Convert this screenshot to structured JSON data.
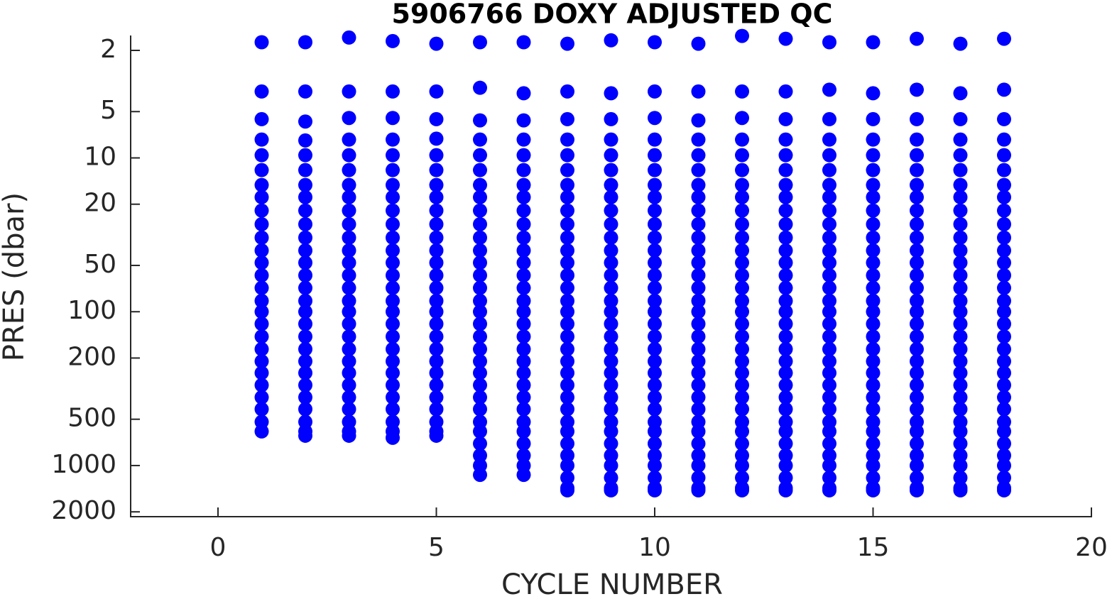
{
  "chart_data": {
    "type": "scatter",
    "title": "5906766  DOXY ADJUSTED QC",
    "x_label": "CYCLE NUMBER",
    "y_label": "PRES (dbar)",
    "color": "#0000ff",
    "y_log": true,
    "y_reversed": true,
    "xlim": [
      -2,
      20
    ],
    "xticks": [
      0,
      5,
      10,
      15,
      20
    ],
    "ylim": [
      1.6,
      2150
    ],
    "yticks": [
      2,
      5,
      10,
      20,
      50,
      100,
      200,
      500,
      1000,
      2000
    ],
    "x": [
      1,
      1,
      1,
      1,
      1,
      1,
      1,
      1,
      1,
      1,
      1,
      1,
      1,
      1,
      1,
      1,
      1,
      1,
      1,
      1,
      1,
      1,
      1,
      1,
      1,
      1,
      1,
      2,
      2,
      2,
      2,
      2,
      2,
      2,
      2,
      2,
      2,
      2,
      2,
      2,
      2,
      2,
      2,
      2,
      2,
      2,
      2,
      2,
      2,
      2,
      2,
      2,
      2,
      2,
      2,
      3,
      3,
      3,
      3,
      3,
      3,
      3,
      3,
      3,
      3,
      3,
      3,
      3,
      3,
      3,
      3,
      3,
      3,
      3,
      3,
      3,
      3,
      3,
      3,
      3,
      3,
      3,
      3,
      4,
      4,
      4,
      4,
      4,
      4,
      4,
      4,
      4,
      4,
      4,
      4,
      4,
      4,
      4,
      4,
      4,
      4,
      4,
      4,
      4,
      4,
      4,
      4,
      4,
      4,
      4,
      4,
      5,
      5,
      5,
      5,
      5,
      5,
      5,
      5,
      5,
      5,
      5,
      5,
      5,
      5,
      5,
      5,
      5,
      5,
      5,
      5,
      5,
      5,
      5,
      5,
      5,
      5,
      5,
      5,
      6,
      6,
      6,
      6,
      6,
      6,
      6,
      6,
      6,
      6,
      6,
      6,
      6,
      6,
      6,
      6,
      6,
      6,
      6,
      6,
      6,
      6,
      6,
      6,
      6,
      6,
      6,
      6,
      6,
      6,
      6,
      7,
      7,
      7,
      7,
      7,
      7,
      7,
      7,
      7,
      7,
      7,
      7,
      7,
      7,
      7,
      7,
      7,
      7,
      7,
      7,
      7,
      7,
      7,
      7,
      7,
      7,
      7,
      7,
      7,
      7,
      7,
      8,
      8,
      8,
      8,
      8,
      8,
      8,
      8,
      8,
      8,
      8,
      8,
      8,
      8,
      8,
      8,
      8,
      8,
      8,
      8,
      8,
      8,
      8,
      8,
      8,
      8,
      8,
      8,
      8,
      8,
      8,
      8,
      8,
      9,
      9,
      9,
      9,
      9,
      9,
      9,
      9,
      9,
      9,
      9,
      9,
      9,
      9,
      9,
      9,
      9,
      9,
      9,
      9,
      9,
      9,
      9,
      9,
      9,
      9,
      9,
      9,
      9,
      9,
      9,
      9,
      9,
      10,
      10,
      10,
      10,
      10,
      10,
      10,
      10,
      10,
      10,
      10,
      10,
      10,
      10,
      10,
      10,
      10,
      10,
      10,
      10,
      10,
      10,
      10,
      10,
      10,
      10,
      10,
      10,
      10,
      10,
      10,
      10,
      10,
      11,
      11,
      11,
      11,
      11,
      11,
      11,
      11,
      11,
      11,
      11,
      11,
      11,
      11,
      11,
      11,
      11,
      11,
      11,
      11,
      11,
      11,
      11,
      11,
      11,
      11,
      11,
      11,
      11,
      11,
      11,
      11,
      11,
      12,
      12,
      12,
      12,
      12,
      12,
      12,
      12,
      12,
      12,
      12,
      12,
      12,
      12,
      12,
      12,
      12,
      12,
      12,
      12,
      12,
      12,
      12,
      12,
      12,
      12,
      12,
      12,
      12,
      12,
      12,
      12,
      12,
      13,
      13,
      13,
      13,
      13,
      13,
      13,
      13,
      13,
      13,
      13,
      13,
      13,
      13,
      13,
      13,
      13,
      13,
      13,
      13,
      13,
      13,
      13,
      13,
      13,
      13,
      13,
      13,
      13,
      13,
      13,
      13,
      13,
      14,
      14,
      14,
      14,
      14,
      14,
      14,
      14,
      14,
      14,
      14,
      14,
      14,
      14,
      14,
      14,
      14,
      14,
      14,
      14,
      14,
      14,
      14,
      14,
      14,
      14,
      14,
      14,
      14,
      14,
      14,
      14,
      14,
      15,
      15,
      15,
      15,
      15,
      15,
      15,
      15,
      15,
      15,
      15,
      15,
      15,
      15,
      15,
      15,
      15,
      15,
      15,
      15,
      15,
      15,
      15,
      15,
      15,
      15,
      15,
      15,
      15,
      15,
      15,
      15,
      15,
      16,
      16,
      16,
      16,
      16,
      16,
      16,
      16,
      16,
      16,
      16,
      16,
      16,
      16,
      16,
      16,
      16,
      16,
      16,
      16,
      16,
      16,
      16,
      16,
      16,
      16,
      16,
      16,
      16,
      16,
      16,
      16,
      16,
      17,
      17,
      17,
      17,
      17,
      17,
      17,
      17,
      17,
      17,
      17,
      17,
      17,
      17,
      17,
      17,
      17,
      17,
      17,
      17,
      17,
      17,
      17,
      17,
      17,
      17,
      17,
      17,
      17,
      17,
      17,
      17,
      17,
      18,
      18,
      18,
      18,
      18,
      18,
      18,
      18,
      18,
      18,
      18,
      18,
      18,
      18,
      18,
      18,
      18,
      18,
      18,
      18,
      18,
      18,
      18,
      18,
      18,
      18,
      18,
      18,
      18,
      18,
      18,
      18,
      18
    ],
    "values": [
      1.77,
      3.7,
      5.6,
      7.6,
      9.6,
      12,
      15,
      18,
      22,
      27,
      33,
      40,
      48,
      58,
      70,
      85,
      100,
      120,
      145,
      175,
      210,
      250,
      300,
      360,
      430,
      520,
      600,
      1.77,
      3.7,
      5.8,
      7.7,
      9.6,
      12,
      15,
      18,
      22,
      27,
      33,
      40,
      48,
      58,
      70,
      85,
      100,
      120,
      145,
      175,
      210,
      250,
      300,
      360,
      430,
      520,
      600,
      640,
      1.65,
      3.7,
      5.5,
      7.6,
      9.6,
      12,
      15,
      18,
      22,
      27,
      33,
      40,
      48,
      58,
      70,
      85,
      100,
      120,
      145,
      175,
      210,
      250,
      300,
      360,
      430,
      520,
      600,
      640,
      1.74,
      3.7,
      5.5,
      7.6,
      9.6,
      12,
      15,
      18,
      22,
      27,
      33,
      40,
      48,
      58,
      70,
      85,
      100,
      120,
      145,
      175,
      210,
      250,
      300,
      360,
      430,
      520,
      600,
      660,
      1.81,
      3.7,
      5.6,
      7.5,
      9.6,
      12,
      15,
      18,
      22,
      27,
      33,
      40,
      48,
      58,
      70,
      85,
      100,
      120,
      145,
      175,
      210,
      250,
      300,
      360,
      430,
      520,
      600,
      640,
      1.77,
      3.5,
      5.7,
      7.6,
      9.6,
      12,
      15,
      18,
      22,
      27,
      33,
      40,
      48,
      58,
      70,
      85,
      100,
      120,
      145,
      175,
      210,
      250,
      300,
      360,
      430,
      520,
      600,
      720,
      860,
      1000,
      1150,
      1.77,
      3.8,
      5.7,
      7.6,
      9.6,
      12,
      15,
      18,
      22,
      27,
      33,
      40,
      48,
      58,
      70,
      85,
      100,
      120,
      145,
      175,
      210,
      250,
      300,
      360,
      430,
      520,
      600,
      720,
      860,
      1000,
      1150,
      1.81,
      3.7,
      5.6,
      7.6,
      9.6,
      12,
      15,
      18,
      22,
      27,
      33,
      40,
      48,
      58,
      70,
      85,
      100,
      120,
      145,
      175,
      210,
      250,
      300,
      360,
      430,
      520,
      600,
      720,
      860,
      1000,
      1200,
      1400,
      1450,
      1.72,
      3.8,
      5.6,
      7.6,
      9.6,
      12,
      15,
      18,
      22,
      27,
      33,
      40,
      48,
      58,
      70,
      85,
      100,
      120,
      145,
      175,
      210,
      250,
      300,
      360,
      430,
      520,
      600,
      720,
      860,
      1000,
      1200,
      1400,
      1450,
      1.77,
      3.7,
      5.5,
      7.6,
      9.6,
      12,
      15,
      18,
      22,
      27,
      33,
      40,
      48,
      58,
      70,
      85,
      100,
      120,
      145,
      175,
      210,
      250,
      300,
      360,
      430,
      520,
      600,
      720,
      860,
      1000,
      1200,
      1400,
      1450,
      1.81,
      3.7,
      5.7,
      7.6,
      9.6,
      12,
      15,
      18,
      22,
      27,
      33,
      40,
      48,
      58,
      70,
      85,
      100,
      120,
      145,
      175,
      210,
      250,
      300,
      360,
      430,
      520,
      600,
      720,
      860,
      1000,
      1200,
      1400,
      1450,
      1.61,
      3.7,
      5.5,
      7.6,
      9.6,
      12,
      15,
      18,
      22,
      27,
      33,
      40,
      48,
      58,
      70,
      85,
      100,
      120,
      145,
      175,
      210,
      250,
      300,
      360,
      430,
      520,
      600,
      720,
      860,
      1000,
      1200,
      1400,
      1450,
      1.68,
      3.7,
      5.6,
      7.6,
      9.6,
      12,
      15,
      18,
      22,
      27,
      33,
      40,
      48,
      58,
      70,
      85,
      100,
      120,
      145,
      175,
      210,
      250,
      300,
      360,
      430,
      520,
      600,
      720,
      860,
      1000,
      1200,
      1400,
      1450,
      1.77,
      3.6,
      5.6,
      7.6,
      9.6,
      12,
      15,
      18,
      22,
      27,
      33,
      40,
      48,
      58,
      70,
      85,
      100,
      120,
      145,
      175,
      210,
      250,
      300,
      360,
      430,
      520,
      600,
      720,
      860,
      1000,
      1200,
      1400,
      1450,
      1.77,
      3.8,
      5.6,
      7.6,
      9.6,
      12,
      15,
      18,
      22,
      27,
      33,
      40,
      48,
      58,
      70,
      85,
      100,
      120,
      145,
      175,
      210,
      250,
      300,
      360,
      430,
      520,
      600,
      720,
      860,
      1000,
      1200,
      1400,
      1450,
      1.68,
      3.6,
      5.6,
      7.6,
      9.6,
      12,
      15,
      18,
      22,
      27,
      33,
      40,
      48,
      58,
      70,
      85,
      100,
      120,
      145,
      175,
      210,
      250,
      300,
      360,
      430,
      520,
      600,
      720,
      860,
      1000,
      1200,
      1400,
      1450,
      1.81,
      3.8,
      5.6,
      7.6,
      9.6,
      12,
      15,
      18,
      22,
      27,
      33,
      40,
      48,
      58,
      70,
      85,
      100,
      120,
      145,
      175,
      210,
      250,
      300,
      360,
      430,
      520,
      600,
      720,
      860,
      1000,
      1200,
      1400,
      1450,
      1.68,
      3.6,
      5.6,
      7.6,
      9.6,
      12,
      15,
      18,
      22,
      27,
      33,
      40,
      48,
      58,
      70,
      85,
      100,
      120,
      145,
      175,
      210,
      250,
      300,
      360,
      430,
      520,
      600,
      720,
      860,
      1000,
      1200,
      1400,
      1450
    ]
  }
}
